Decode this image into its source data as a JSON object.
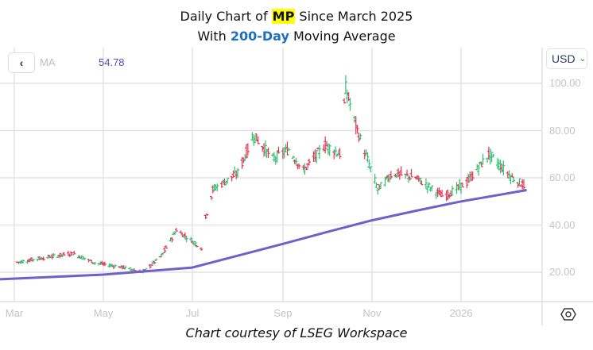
{
  "title": {
    "line1_prefix": "Daily Chart of ",
    "ticker": "MP",
    "line1_suffix": " Since March 2025",
    "line2_prefix": "With ",
    "line2_highlight": "200-Day",
    "line2_suffix": " Moving Average"
  },
  "legend": {
    "back_icon": "‹",
    "ma_label": "MA",
    "ma_value": "54.78"
  },
  "currency_selector": {
    "value": "USD",
    "chevron": "⌄"
  },
  "caption": "Chart courtesy of LSEG Workspace",
  "colors": {
    "up": "#2fbf71",
    "down": "#e0344f",
    "ma": "#7060c8",
    "grid": "#e3e3e3",
    "axis_text": "#c4c4c4",
    "ticker_highlight": "#ffff00",
    "highlight_blue": "#1f6fc0"
  },
  "chart_data": {
    "type": "ohlc",
    "title": "Daily Chart of MP Since March 2025 With 200-Day Moving Average",
    "xlabel": "",
    "ylabel": "USD",
    "ylim": [
      0,
      110
    ],
    "y_ticks": [
      "100.00",
      "80.00",
      "60.00",
      "40.00",
      "20.00"
    ],
    "x_ticks": [
      "Mar",
      "May",
      "Jul",
      "Sep",
      "Nov",
      "2026"
    ],
    "grid": true,
    "legend": [
      {
        "name": "MA (200-Day)",
        "last_value": 54.78,
        "color": "#7060c8"
      }
    ],
    "price_anchors": [
      {
        "date": "2025-03-01",
        "close": 24
      },
      {
        "date": "2025-03-20",
        "close": 26
      },
      {
        "date": "2025-04-10",
        "close": 28
      },
      {
        "date": "2025-04-25",
        "close": 24
      },
      {
        "date": "2025-05-15",
        "close": 22
      },
      {
        "date": "2025-05-28",
        "close": 20
      },
      {
        "date": "2025-06-10",
        "close": 27
      },
      {
        "date": "2025-06-20",
        "close": 38
      },
      {
        "date": "2025-07-08",
        "close": 30
      },
      {
        "date": "2025-07-10",
        "close": 43
      },
      {
        "date": "2025-07-15",
        "close": 55
      },
      {
        "date": "2025-08-01",
        "close": 62
      },
      {
        "date": "2025-08-12",
        "close": 78
      },
      {
        "date": "2025-08-25",
        "close": 68
      },
      {
        "date": "2025-09-05",
        "close": 72
      },
      {
        "date": "2025-09-15",
        "close": 63
      },
      {
        "date": "2025-09-30",
        "close": 74
      },
      {
        "date": "2025-10-10",
        "close": 70
      },
      {
        "date": "2025-10-14",
        "close": 98
      },
      {
        "date": "2025-10-22",
        "close": 80
      },
      {
        "date": "2025-11-05",
        "close": 55
      },
      {
        "date": "2025-11-15",
        "close": 62
      },
      {
        "date": "2025-12-01",
        "close": 60
      },
      {
        "date": "2025-12-20",
        "close": 52
      },
      {
        "date": "2026-01-05",
        "close": 58
      },
      {
        "date": "2026-01-20",
        "close": 70
      },
      {
        "date": "2026-02-05",
        "close": 60
      },
      {
        "date": "2026-02-15",
        "close": 56
      }
    ],
    "moving_average": [
      {
        "date": "2025-03-01",
        "value": 17
      },
      {
        "date": "2025-05-01",
        "value": 19
      },
      {
        "date": "2025-06-01",
        "value": 20.5
      },
      {
        "date": "2025-07-01",
        "value": 22
      },
      {
        "date": "2025-08-01",
        "value": 27
      },
      {
        "date": "2025-09-01",
        "value": 32
      },
      {
        "date": "2025-10-01",
        "value": 37
      },
      {
        "date": "2025-11-01",
        "value": 42
      },
      {
        "date": "2025-12-01",
        "value": 46
      },
      {
        "date": "2026-01-01",
        "value": 50
      },
      {
        "date": "2026-02-15",
        "value": 54.78
      }
    ],
    "last_ma_value": 54.78
  }
}
